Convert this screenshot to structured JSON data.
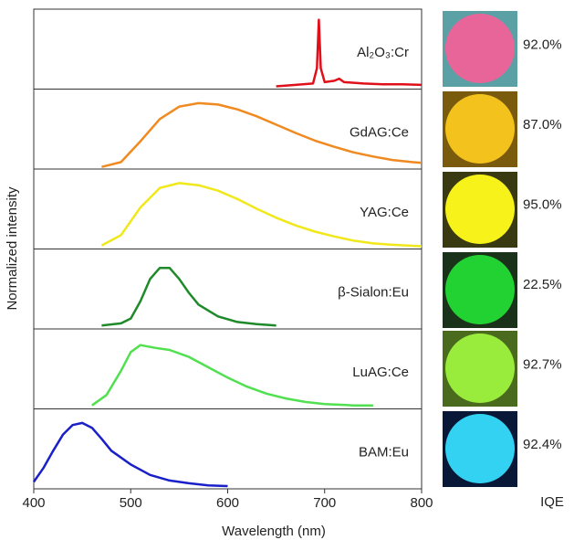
{
  "chart_data": {
    "type": "line",
    "xlabel": "Wavelength (nm)",
    "ylabel": "Normalized intensity",
    "xlim": [
      400,
      800
    ],
    "xticks": [
      400,
      500,
      600,
      700,
      800
    ],
    "ylim": [
      0,
      1.1
    ],
    "series": [
      {
        "name": "Al₂O₃:Cr",
        "color": "#e0101a",
        "x": [
          650,
          670,
          688,
          692,
          694,
          696,
          700,
          710,
          715,
          720,
          740,
          760,
          780,
          800
        ],
        "values": [
          0.04,
          0.06,
          0.08,
          0.3,
          1.0,
          0.3,
          0.1,
          0.12,
          0.15,
          0.1,
          0.08,
          0.07,
          0.07,
          0.06
        ]
      },
      {
        "name": "GdAG:Ce",
        "color": "#f08a20",
        "x": [
          470,
          490,
          510,
          530,
          550,
          570,
          590,
          610,
          630,
          650,
          670,
          690,
          710,
          730,
          750,
          770,
          790,
          800
        ],
        "values": [
          0.03,
          0.1,
          0.4,
          0.72,
          0.9,
          0.95,
          0.93,
          0.86,
          0.76,
          0.64,
          0.52,
          0.41,
          0.32,
          0.24,
          0.18,
          0.13,
          0.1,
          0.09
        ]
      },
      {
        "name": "YAG:Ce",
        "color": "#f0e81a",
        "x": [
          470,
          490,
          510,
          530,
          550,
          570,
          590,
          610,
          630,
          650,
          670,
          690,
          710,
          730,
          750,
          770,
          800
        ],
        "values": [
          0.05,
          0.2,
          0.6,
          0.88,
          0.95,
          0.92,
          0.84,
          0.72,
          0.58,
          0.45,
          0.34,
          0.25,
          0.18,
          0.12,
          0.08,
          0.06,
          0.04
        ]
      },
      {
        "name": "β-Sialon:Eu",
        "color": "#1e8a2a",
        "x": [
          470,
          490,
          500,
          510,
          520,
          530,
          540,
          550,
          560,
          570,
          590,
          610,
          630,
          650
        ],
        "values": [
          0.05,
          0.08,
          0.15,
          0.4,
          0.72,
          0.88,
          0.88,
          0.72,
          0.52,
          0.35,
          0.18,
          0.1,
          0.07,
          0.05
        ]
      },
      {
        "name": "LuAG:Ce",
        "color": "#50e050",
        "x": [
          460,
          475,
          490,
          500,
          510,
          525,
          540,
          560,
          580,
          600,
          620,
          640,
          660,
          680,
          700,
          730,
          750
        ],
        "values": [
          0.05,
          0.2,
          0.55,
          0.82,
          0.92,
          0.88,
          0.85,
          0.75,
          0.6,
          0.45,
          0.32,
          0.22,
          0.15,
          0.1,
          0.07,
          0.05,
          0.05
        ]
      },
      {
        "name": "BAM:Eu",
        "color": "#1a20c8",
        "x": [
          400,
          410,
          420,
          430,
          440,
          450,
          460,
          470,
          480,
          500,
          520,
          540,
          560,
          580,
          600
        ],
        "values": [
          0.1,
          0.3,
          0.55,
          0.78,
          0.92,
          0.95,
          0.88,
          0.72,
          0.55,
          0.35,
          0.2,
          0.12,
          0.08,
          0.05,
          0.04
        ]
      }
    ],
    "iqe": {
      "label": "IQE",
      "values": [
        92.0,
        87.0,
        95.0,
        22.5,
        92.7,
        92.4
      ],
      "value_labels": [
        "92.0%",
        "87.0%",
        "95.0%",
        "22.5%",
        "92.7%",
        "92.4%"
      ]
    }
  }
}
